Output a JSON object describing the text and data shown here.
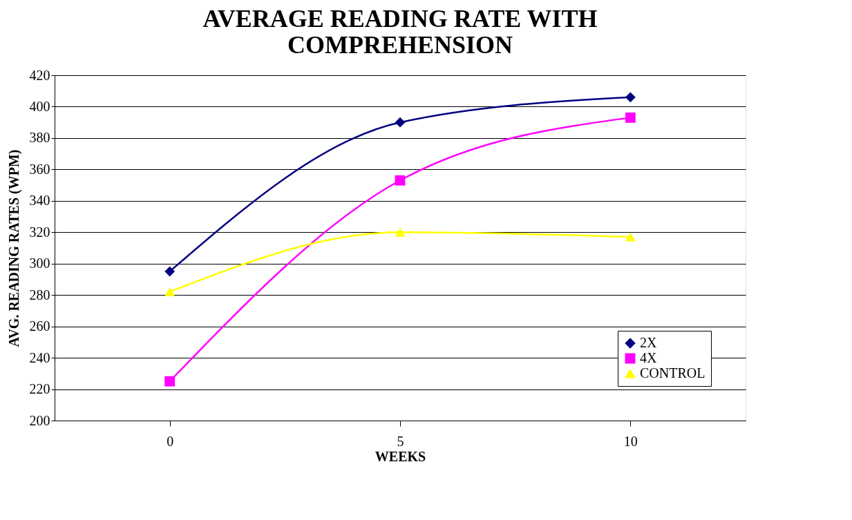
{
  "chart_data": {
    "type": "line",
    "title": "AVERAGE READING RATE WITH COMPREHENSION",
    "xlabel": "WEEKS",
    "ylabel": "AVG. READING RATES (WPM)",
    "categories": [
      "0",
      "5",
      "10"
    ],
    "series": [
      {
        "name": "2X",
        "color": "#000080",
        "marker": "diamond",
        "values": [
          295,
          390,
          406
        ]
      },
      {
        "name": "4X",
        "color": "#ff00ff",
        "marker": "square",
        "values": [
          225,
          353,
          393
        ]
      },
      {
        "name": "CONTROL",
        "color": "#ffff00",
        "marker": "triangle",
        "values": [
          282,
          320,
          317
        ]
      }
    ],
    "ylim": [
      200,
      420
    ],
    "yticks": [
      200,
      220,
      240,
      260,
      280,
      300,
      320,
      340,
      360,
      380,
      400,
      420
    ],
    "grid": "y",
    "legend": "bottom right",
    "line_style": "solid"
  }
}
